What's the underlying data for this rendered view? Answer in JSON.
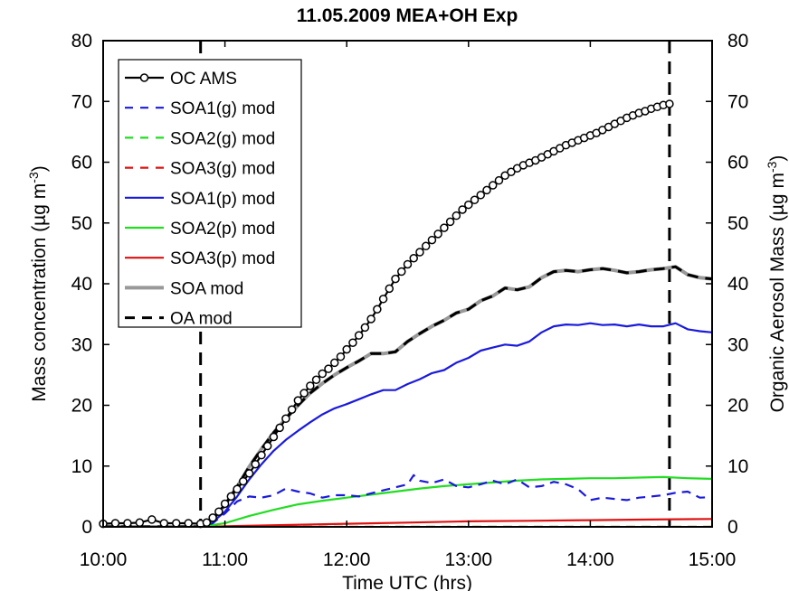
{
  "chart_data": {
    "type": "line",
    "title": "11.05.2009 MEA+OH Exp",
    "xlabel": "Time UTC (hrs)",
    "ylabel_left": "Mass concentration (µg m",
    "ylabel_left_sup": "-3",
    "ylabel_left_suffix": ")",
    "ylabel_right": "Organic Aerosol Mass (µg m",
    "ylabel_right_sup": "-3",
    "ylabel_right_suffix": ")",
    "x_ticks": [
      "10:00",
      "11:00",
      "12:00",
      "13:00",
      "14:00",
      "15:00"
    ],
    "y_ticks": [
      "0",
      "10",
      "20",
      "30",
      "40",
      "50",
      "60",
      "70",
      "80"
    ],
    "xlim": [
      10,
      15
    ],
    "ylim": [
      0,
      80
    ],
    "vlines": [
      10.8,
      14.65
    ],
    "legend_position": "top-left",
    "series": [
      {
        "name": "OC AMS",
        "color": "#000000",
        "style": "solid-marker",
        "x": [
          10.0,
          10.1,
          10.2,
          10.3,
          10.4,
          10.5,
          10.6,
          10.7,
          10.8,
          10.85,
          10.9,
          10.95,
          11.0,
          11.05,
          11.1,
          11.15,
          11.2,
          11.25,
          11.3,
          11.35,
          11.4,
          11.45,
          11.5,
          11.55,
          11.6,
          11.65,
          11.7,
          11.75,
          11.8,
          11.85,
          11.9,
          11.95,
          12.0,
          12.05,
          12.1,
          12.15,
          12.2,
          12.25,
          12.3,
          12.35,
          12.4,
          12.45,
          12.5,
          12.55,
          12.6,
          12.65,
          12.7,
          12.75,
          12.8,
          12.85,
          12.9,
          12.95,
          13.0,
          13.05,
          13.1,
          13.15,
          13.2,
          13.25,
          13.3,
          13.35,
          13.4,
          13.45,
          13.5,
          13.55,
          13.6,
          13.65,
          13.7,
          13.75,
          13.8,
          13.85,
          13.9,
          13.95,
          14.0,
          14.05,
          14.1,
          14.15,
          14.2,
          14.25,
          14.3,
          14.35,
          14.4,
          14.45,
          14.5,
          14.55,
          14.6,
          14.65
        ],
        "y": [
          0.5,
          0.6,
          0.6,
          0.7,
          1.2,
          0.6,
          0.6,
          0.6,
          0.5,
          0.7,
          1.5,
          2.5,
          3.8,
          5.0,
          6.2,
          7.5,
          8.8,
          10.3,
          11.8,
          13.3,
          14.8,
          16.3,
          17.8,
          19.3,
          20.8,
          22.0,
          23.2,
          24.2,
          25.2,
          26.0,
          27.0,
          28.0,
          29.2,
          30.3,
          31.5,
          32.8,
          34.2,
          35.8,
          37.5,
          39.2,
          40.8,
          42.0,
          43.2,
          44.2,
          45.2,
          46.2,
          47.2,
          48.2,
          49.2,
          50.2,
          51.2,
          52.2,
          53.0,
          53.8,
          54.6,
          55.4,
          56.2,
          57.0,
          57.8,
          58.4,
          59.0,
          59.5,
          59.9,
          60.3,
          60.8,
          61.3,
          61.8,
          62.3,
          62.8,
          63.2,
          63.6,
          64.0,
          64.4,
          64.8,
          65.3,
          65.8,
          66.3,
          66.8,
          67.3,
          67.7,
          68.1,
          68.4,
          68.8,
          69.1,
          69.4,
          69.6
        ]
      },
      {
        "name": "SOA1(g) mod",
        "color": "#1a1adc",
        "style": "dashed",
        "x": [
          10.0,
          10.8,
          10.9,
          11.0,
          11.1,
          11.2,
          11.3,
          11.4,
          11.5,
          11.6,
          11.7,
          11.8,
          11.9,
          12.0,
          12.1,
          12.2,
          12.3,
          12.4,
          12.5,
          12.55,
          12.6,
          12.7,
          12.8,
          12.9,
          13.0,
          13.1,
          13.2,
          13.3,
          13.4,
          13.5,
          13.6,
          13.7,
          13.8,
          13.9,
          14.0,
          14.1,
          14.2,
          14.3,
          14.4,
          14.5,
          14.6,
          14.7,
          14.8,
          14.9,
          15.0
        ],
        "y": [
          0,
          0,
          0.6,
          2.2,
          4.2,
          5.0,
          4.8,
          5.2,
          6.3,
          5.8,
          5.5,
          4.8,
          5.2,
          5.2,
          5.0,
          5.5,
          6.0,
          6.5,
          7.0,
          8.5,
          7.6,
          7.2,
          7.8,
          6.7,
          6.5,
          7.0,
          7.6,
          7.0,
          7.8,
          6.5,
          6.7,
          7.4,
          7.0,
          6.2,
          4.4,
          4.8,
          4.6,
          4.4,
          4.8,
          5.0,
          5.2,
          5.6,
          5.8,
          4.8,
          4.9
        ]
      },
      {
        "name": "SOA2(g) mod",
        "color": "#22dd22",
        "style": "dashed",
        "x": [
          10.0,
          15.0
        ],
        "y": [
          0,
          0
        ]
      },
      {
        "name": "SOA3(g) mod",
        "color": "#dd1111",
        "style": "dashed",
        "x": [
          10.0,
          15.0
        ],
        "y": [
          0,
          0
        ]
      },
      {
        "name": "SOA1(p) mod",
        "color": "#1a1adc",
        "style": "solid",
        "x": [
          10.0,
          10.8,
          10.9,
          11.0,
          11.1,
          11.2,
          11.3,
          11.4,
          11.5,
          11.6,
          11.7,
          11.8,
          11.9,
          12.0,
          12.1,
          12.2,
          12.3,
          12.4,
          12.5,
          12.6,
          12.7,
          12.8,
          12.9,
          13.0,
          13.1,
          13.2,
          13.3,
          13.4,
          13.5,
          13.6,
          13.7,
          13.8,
          13.9,
          14.0,
          14.1,
          14.2,
          14.3,
          14.4,
          14.5,
          14.6,
          14.7,
          14.8,
          14.9,
          15.0
        ],
        "y": [
          0,
          0,
          0.8,
          2.5,
          5.0,
          7.8,
          10.3,
          12.5,
          14.3,
          15.8,
          17.2,
          18.5,
          19.5,
          20.2,
          21.0,
          21.8,
          22.5,
          22.5,
          23.5,
          24.3,
          25.3,
          25.8,
          27.0,
          27.8,
          29.0,
          29.5,
          30.0,
          29.8,
          30.5,
          32.0,
          33.0,
          33.3,
          33.2,
          33.5,
          33.2,
          33.3,
          33.0,
          33.3,
          33.0,
          33.0,
          33.5,
          32.5,
          32.2,
          32.0
        ]
      },
      {
        "name": "SOA2(p) mod",
        "color": "#22dd22",
        "style": "solid",
        "x": [
          10.0,
          10.8,
          11.0,
          11.2,
          11.4,
          11.6,
          11.8,
          12.0,
          12.2,
          12.4,
          12.6,
          12.8,
          13.0,
          13.2,
          13.4,
          13.6,
          13.8,
          14.0,
          14.2,
          14.4,
          14.6,
          14.8,
          15.0
        ],
        "y": [
          0,
          0,
          0.6,
          1.8,
          2.8,
          3.7,
          4.3,
          4.8,
          5.3,
          5.8,
          6.3,
          6.7,
          7.0,
          7.3,
          7.6,
          7.8,
          7.9,
          8.0,
          8.0,
          8.1,
          8.2,
          8.0,
          7.9
        ]
      },
      {
        "name": "SOA3(p) mod",
        "color": "#dd1111",
        "style": "solid",
        "x": [
          10.0,
          10.8,
          11.0,
          11.5,
          12.0,
          12.5,
          13.0,
          13.5,
          14.0,
          14.5,
          15.0
        ],
        "y": [
          0,
          0,
          0.1,
          0.3,
          0.5,
          0.7,
          0.9,
          1.0,
          1.1,
          1.2,
          1.3
        ]
      },
      {
        "name": "SOA mod",
        "color": "#999999",
        "style": "solid-thick",
        "x": [
          10.0,
          10.8,
          10.9,
          11.0,
          11.1,
          11.2,
          11.3,
          11.4,
          11.5,
          11.6,
          11.7,
          11.8,
          11.9,
          12.0,
          12.1,
          12.2,
          12.3,
          12.4,
          12.5,
          12.6,
          12.7,
          12.8,
          12.9,
          13.0,
          13.1,
          13.2,
          13.3,
          13.4,
          13.5,
          13.6,
          13.7,
          13.8,
          13.9,
          14.0,
          14.1,
          14.2,
          14.3,
          14.4,
          14.5,
          14.6,
          14.7,
          14.8,
          14.9,
          15.0
        ],
        "y": [
          0,
          0,
          1.2,
          3.6,
          6.6,
          9.9,
          12.8,
          15.5,
          17.8,
          20.0,
          22.0,
          23.6,
          25.0,
          26.2,
          27.3,
          28.5,
          28.5,
          28.8,
          30.5,
          31.8,
          33.0,
          34.0,
          35.2,
          35.8,
          37.2,
          38.0,
          39.3,
          39.0,
          39.5,
          41.0,
          42.0,
          42.2,
          42.0,
          42.3,
          42.5,
          42.2,
          41.8,
          42.0,
          42.3,
          42.5,
          42.8,
          41.5,
          41.0,
          40.8
        ]
      },
      {
        "name": "OA mod",
        "color": "#000000",
        "style": "dashed-thick",
        "x": [
          10.0,
          10.8,
          10.9,
          11.0,
          11.1,
          11.2,
          11.3,
          11.4,
          11.5,
          11.6,
          11.7,
          11.8,
          11.9,
          12.0,
          12.1,
          12.2,
          12.3,
          12.4,
          12.5,
          12.6,
          12.7,
          12.8,
          12.9,
          13.0,
          13.1,
          13.2,
          13.3,
          13.4,
          13.5,
          13.6,
          13.7,
          13.8,
          13.9,
          14.0,
          14.1,
          14.2,
          14.3,
          14.4,
          14.5,
          14.6,
          14.7,
          14.8,
          14.9,
          15.0
        ],
        "y": [
          0,
          0,
          1.2,
          3.6,
          6.6,
          9.9,
          12.8,
          15.5,
          17.8,
          20.0,
          22.0,
          23.6,
          25.0,
          26.2,
          27.3,
          28.5,
          28.5,
          28.8,
          30.5,
          31.8,
          33.0,
          34.0,
          35.2,
          35.8,
          37.2,
          38.0,
          39.3,
          39.0,
          39.5,
          41.0,
          42.0,
          42.2,
          42.0,
          42.3,
          42.5,
          42.2,
          41.8,
          42.0,
          42.3,
          42.5,
          42.8,
          41.5,
          41.0,
          40.8
        ]
      }
    ]
  }
}
